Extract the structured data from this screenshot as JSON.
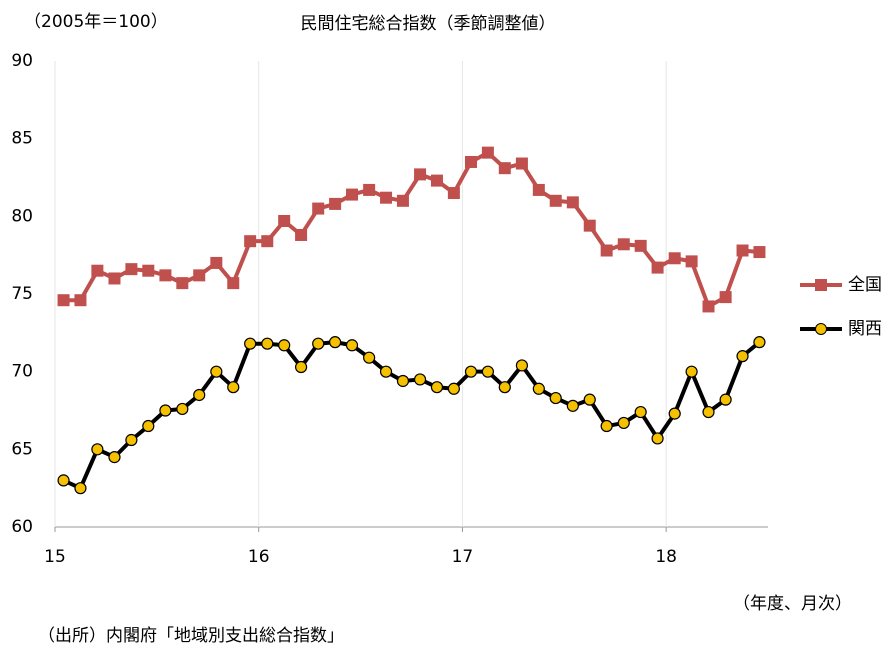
{
  "chart_data": {
    "type": "line",
    "title": "民間住宅総合指数（季節調整値）",
    "y_label": "（2005年＝100）",
    "x_label": "（年度、月次）",
    "source": "（出所）内閣府「地域別支出総合指数」",
    "x": [
      15.042,
      15.125,
      15.208,
      15.292,
      15.375,
      15.458,
      15.542,
      15.625,
      15.708,
      15.792,
      15.875,
      15.958,
      16.042,
      16.125,
      16.208,
      16.292,
      16.375,
      16.458,
      16.542,
      16.625,
      16.708,
      16.792,
      16.875,
      16.958,
      17.042,
      17.125,
      17.208,
      17.292,
      17.375,
      17.458,
      17.542,
      17.625,
      17.708,
      17.792,
      17.875,
      17.958,
      18.042,
      18.125,
      18.208,
      18.292,
      18.375,
      18.458
    ],
    "series": [
      {
        "name": "全国",
        "color": "#c0504d",
        "marker": "square",
        "values": [
          74.6,
          74.6,
          76.5,
          76.0,
          76.6,
          76.5,
          76.2,
          75.7,
          76.2,
          77.0,
          75.7,
          78.4,
          78.4,
          79.7,
          78.8,
          80.5,
          80.8,
          81.4,
          81.7,
          81.2,
          81.0,
          82.7,
          82.3,
          81.5,
          83.5,
          84.1,
          83.1,
          83.4,
          81.7,
          81.0,
          80.9,
          79.4,
          77.8,
          78.2,
          78.1,
          76.7,
          77.3,
          77.1,
          74.2,
          74.8,
          77.8,
          77.7
        ]
      },
      {
        "name": "関西",
        "color": "#000000",
        "marker": "circle",
        "marker_color": "#f5c000",
        "values": [
          63.0,
          62.5,
          65.0,
          64.5,
          65.6,
          66.5,
          67.5,
          67.6,
          68.5,
          70.0,
          69.0,
          71.8,
          71.8,
          71.7,
          70.3,
          71.8,
          71.9,
          71.7,
          70.9,
          70.0,
          69.4,
          69.5,
          69.0,
          68.9,
          70.0,
          70.0,
          69.0,
          70.4,
          68.9,
          68.3,
          67.8,
          68.2,
          66.5,
          66.7,
          67.4,
          65.7,
          67.3,
          70.0,
          67.4,
          68.2,
          71.0,
          71.9
        ]
      }
    ],
    "xlim": [
      15,
      18.5
    ],
    "xticks": [
      15,
      16,
      17,
      18
    ],
    "ylim": [
      60,
      90
    ],
    "yticks": [
      60,
      65,
      70,
      75,
      80,
      85,
      90
    ],
    "grid": "x",
    "legend": "right"
  }
}
